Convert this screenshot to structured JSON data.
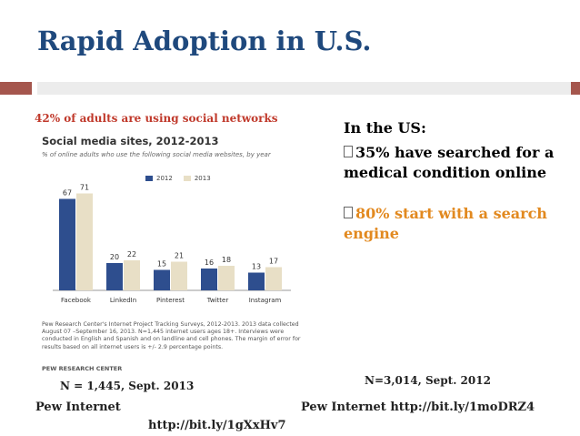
{
  "slide": {
    "title": "Rapid Adoption in U.S.",
    "top_label": "42% of adults are using social networks",
    "right_heading": "In the US:",
    "bullets": [
      "35% have searched for a medical condition online",
      "80% start with a search engine"
    ],
    "n_left": "N = 1,445, Sept. 2013",
    "n_right": "N=3,014, Sept. 2012",
    "pew_left": "Pew Internet",
    "pew_right": "Pew Internet http://bit.ly/1moDRZ4",
    "link_bottom": "http://bit.ly/1gXxHv7"
  },
  "colors": {
    "title": "#1f497d",
    "accent_bar": "#a5564d",
    "label_red": "#c0392b",
    "bullet_orange": "#e2891f",
    "series_2012": "#2e4e8e",
    "series_2013": "#e8dfc6"
  },
  "chart_data": {
    "type": "bar",
    "title": "Social media sites, 2012-2013",
    "subtitle": "% of online adults who use the following social media websites, by year",
    "categories": [
      "Facebook",
      "LinkedIn",
      "Pinterest",
      "Twitter",
      "Instagram"
    ],
    "series": [
      {
        "name": "2012",
        "values": [
          67,
          20,
          15,
          16,
          13
        ]
      },
      {
        "name": "2013",
        "values": [
          71,
          22,
          21,
          18,
          17
        ]
      }
    ],
    "ylim": [
      0,
      80
    ],
    "grid": false,
    "legend": "top-center",
    "note": "Pew Research Center's Internet Project Tracking Surveys, 2012-2013. 2013 data collected August 07 –September 16, 2013. N=1,445 internet users ages 18+. Interviews were conducted in English and Spanish and on landline and cell phones. The margin of error for results based on all internet users is +/- 2.9 percentage points.",
    "source": "PEW RESEARCH CENTER"
  }
}
